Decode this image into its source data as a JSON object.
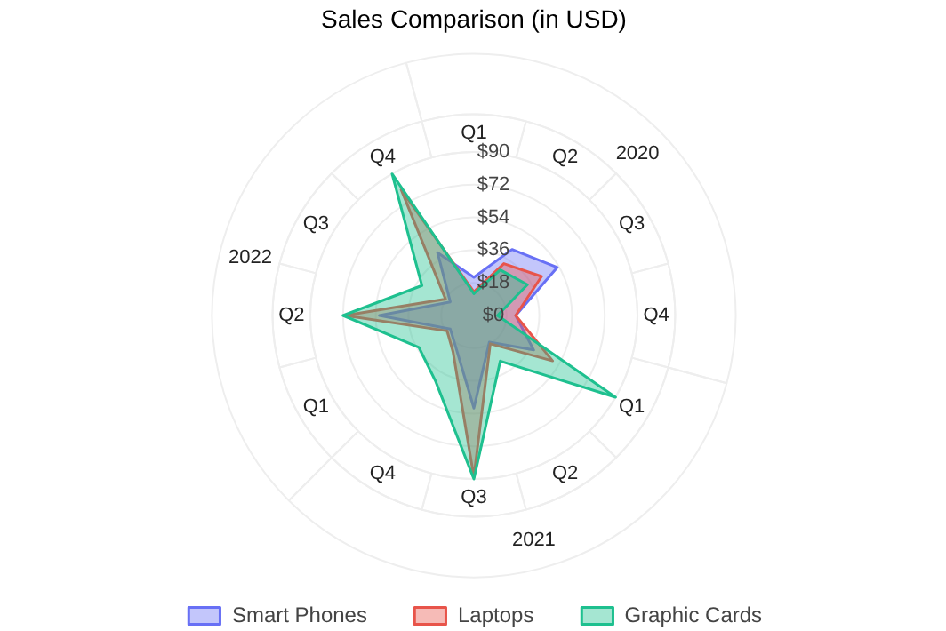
{
  "chart_data": {
    "type": "radar",
    "title": "Sales Comparison (in USD)",
    "categories": [
      "Q1",
      "Q2",
      "Q3",
      "Q4",
      "Q1",
      "Q2",
      "Q3",
      "Q4",
      "Q1",
      "Q2",
      "Q3",
      "Q4"
    ],
    "annotations": [
      "2020",
      "2021",
      "2022"
    ],
    "ylim": [
      0,
      90
    ],
    "yticks": [
      {
        "value": 0,
        "label": "$0"
      },
      {
        "value": 18,
        "label": "$18"
      },
      {
        "value": 36,
        "label": "$36"
      },
      {
        "value": 54,
        "label": "$54"
      },
      {
        "value": 72,
        "label": "$72"
      },
      {
        "value": 90,
        "label": "$90"
      }
    ],
    "grid": true,
    "legend": "bottom",
    "series": [
      {
        "name": "Smart Phones",
        "color": "#6870f5",
        "values": [
          21,
          42,
          53,
          23,
          38,
          17,
          51,
          20,
          15,
          52,
          15,
          40
        ]
      },
      {
        "name": "Laptops",
        "color": "#e8544a",
        "values": [
          13,
          33,
          43,
          23,
          50,
          18,
          89,
          23,
          17,
          71,
          18,
          80
        ]
      },
      {
        "name": "Graphic Cards",
        "color": "#1ec08f",
        "values": [
          12,
          29,
          34,
          13,
          90,
          29,
          90,
          42,
          35,
          72,
          33,
          90
        ]
      }
    ]
  }
}
